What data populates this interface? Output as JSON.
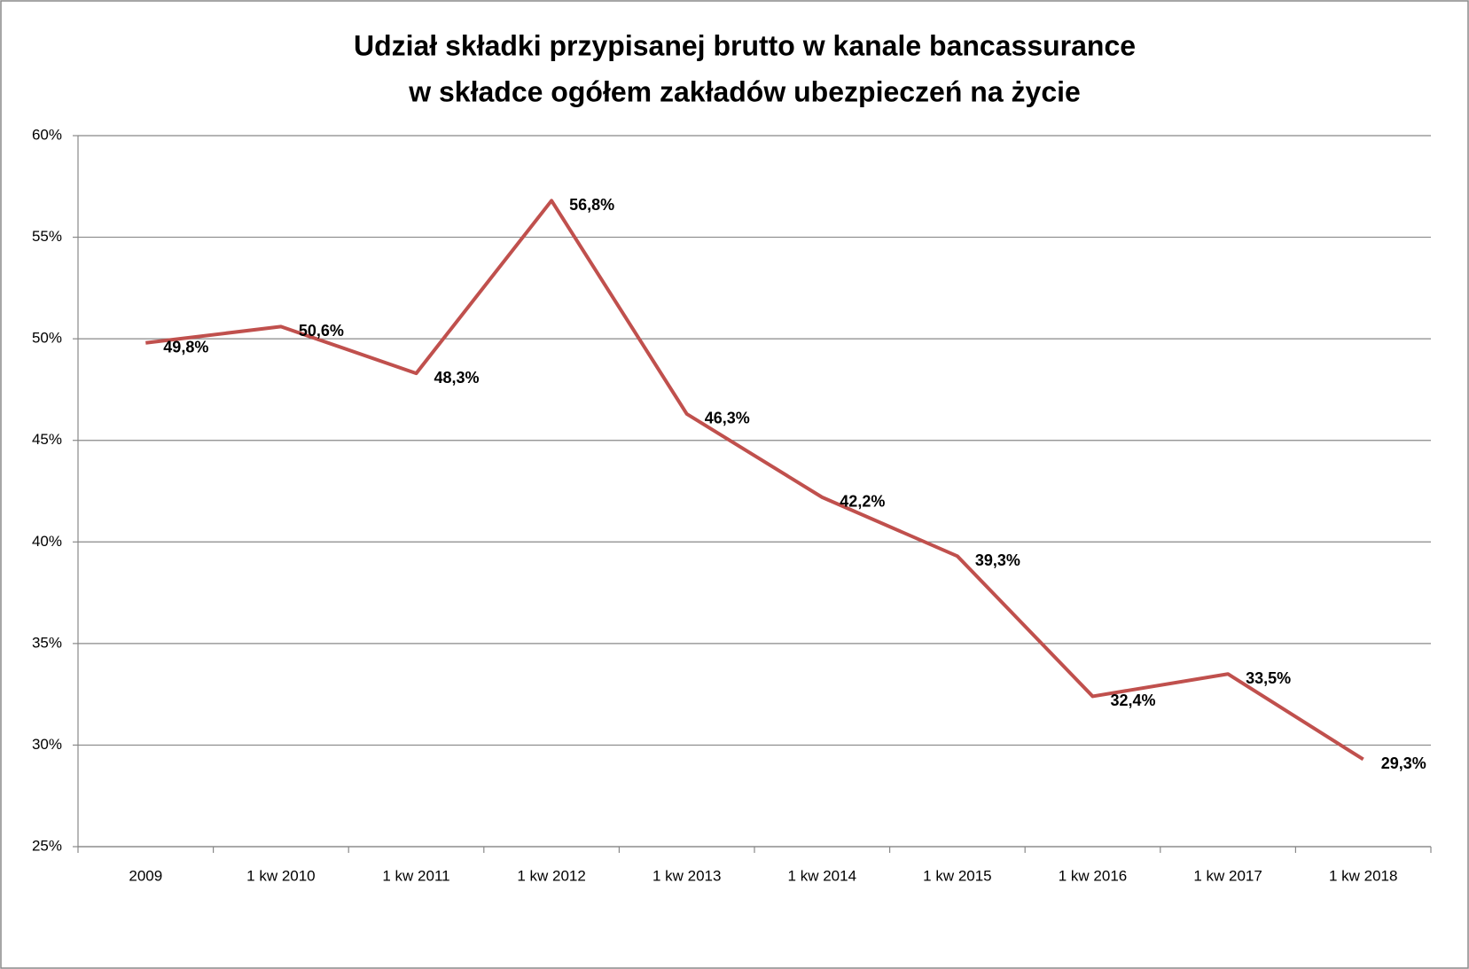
{
  "chart_data": {
    "type": "line",
    "title": [
      "Udział składki przypisanej brutto w kanale bancassurance",
      "w składce ogółem zakładów ubezpieczeń na życie"
    ],
    "categories": [
      "2009",
      "1 kw 2010",
      "1 kw 2011",
      "1 kw 2012",
      "1 kw 2013",
      "1 kw 2014",
      "1 kw 2015",
      "1 kw 2016",
      "1 kw 2017",
      "1 kw 2018"
    ],
    "series": [
      {
        "name": "Udział",
        "color": "#c0504d",
        "values": [
          49.8,
          50.6,
          48.3,
          56.8,
          46.3,
          42.2,
          39.3,
          32.4,
          33.5,
          29.3
        ],
        "value_labels": [
          "49,8%",
          "50,6%",
          "48,3%",
          "56,8%",
          "46,3%",
          "42,2%",
          "39,3%",
          "32,4%",
          "33,5%",
          "29,3%"
        ]
      }
    ],
    "ylim": [
      25,
      60
    ],
    "yticks": [
      {
        "value": 25,
        "label": "25%"
      },
      {
        "value": 30,
        "label": "30%"
      },
      {
        "value": 35,
        "label": "35%"
      },
      {
        "value": 40,
        "label": "40%"
      },
      {
        "value": 45,
        "label": "45%"
      },
      {
        "value": 50,
        "label": "50%"
      },
      {
        "value": 55,
        "label": "55%"
      },
      {
        "value": 60,
        "label": "60%"
      }
    ],
    "grid": true
  }
}
